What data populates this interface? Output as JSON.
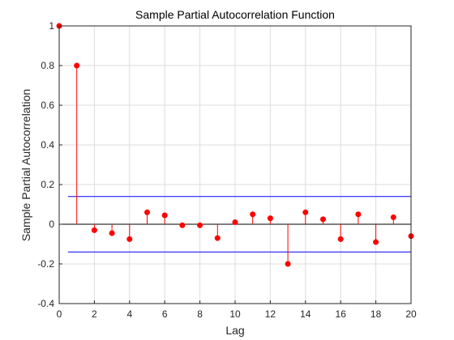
{
  "chart_data": {
    "type": "stem",
    "title": "Sample Partial Autocorrelation Function",
    "xlabel": "Lag",
    "ylabel": "Sample Partial Autocorrelation",
    "xlim": [
      0,
      20
    ],
    "ylim": [
      -0.4,
      1
    ],
    "xticks": [
      0,
      2,
      4,
      6,
      8,
      10,
      12,
      14,
      16,
      18,
      20
    ],
    "xtick_labels": [
      "0",
      "2",
      "4",
      "6",
      "8",
      "10",
      "12",
      "14",
      "16",
      "18",
      "20"
    ],
    "yticks": [
      -0.4,
      -0.2,
      0,
      0.2,
      0.4,
      0.6,
      0.8,
      1
    ],
    "ytick_labels": [
      "-0.4",
      "-0.2",
      "0",
      "0.2",
      "0.4",
      "0.6",
      "0.8",
      "1"
    ],
    "grid": true,
    "series": [
      {
        "x": [
          0,
          1,
          2,
          3,
          4,
          5,
          6,
          7,
          8,
          9,
          10,
          11,
          12,
          13,
          14,
          15,
          16,
          17,
          18,
          19,
          20
        ],
        "values": [
          1,
          0.8,
          -0.03,
          -0.045,
          -0.075,
          0.06,
          0.045,
          -0.005,
          -0.005,
          -0.07,
          0.01,
          0.05,
          0.03,
          -0.2,
          0.06,
          0.025,
          -0.075,
          0.05,
          -0.09,
          0.035,
          -0.06
        ],
        "color": "#ff0000"
      }
    ],
    "confidence_bounds": [
      0.14,
      -0.14
    ],
    "bound_color": "#0000ff",
    "zero_line_color": "#000000"
  }
}
